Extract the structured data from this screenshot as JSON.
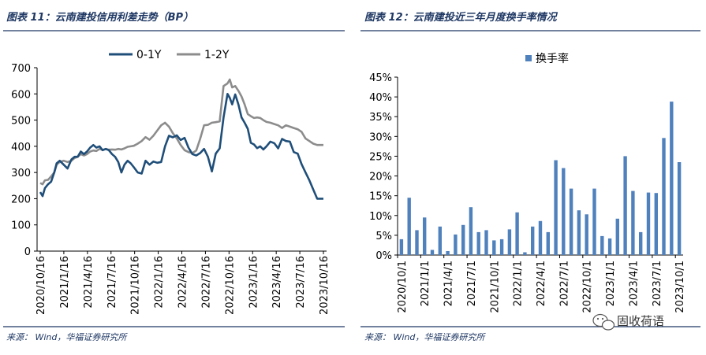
{
  "figure_left": {
    "title": "图表 11：云南建投信用利差走势（BP）",
    "source": "来源：  Wind，华福证券研究所"
  },
  "figure_right": {
    "title": "图表 12：云南建投近三年月度换手率情况",
    "source": "来源：  Wind，华福证券研究所"
  },
  "watermark": {
    "text": "固收荷语"
  },
  "colors": {
    "series_0_1y": "#1f4e79",
    "series_1_2y": "#8c8c8c",
    "bars": "#4f81bd",
    "title": "#1f3864",
    "rule": "#1f3864"
  },
  "chart_data": [
    {
      "type": "line",
      "title": "云南建投信用利差走势（BP）",
      "legend_position": "top-center",
      "ylim": [
        0,
        700
      ],
      "yticks": [
        "0",
        "100",
        "200",
        "300",
        "400",
        "500",
        "600",
        "700"
      ],
      "xticks": [
        "2020/10/16",
        "2021/1/16",
        "2021/4/16",
        "2021/7/16",
        "2021/10/16",
        "2022/1/16",
        "2022/4/16",
        "2022/7/16",
        "2022/10/16",
        "2023/1/16",
        "2023/4/16",
        "2023/7/16",
        "2023/10/16"
      ],
      "x_months_from_start": [
        0,
        0.3,
        0.6,
        1,
        1.4,
        1.8,
        2.1,
        2.5,
        3,
        3.5,
        4,
        4.4,
        4.8,
        5.2,
        5.6,
        6,
        6.4,
        6.8,
        7.2,
        7.6,
        8,
        8.4,
        8.8,
        9.2,
        9.6,
        10,
        10.4,
        10.8,
        11.2,
        11.6,
        12,
        12.5,
        13,
        13.5,
        14,
        14.5,
        15,
        15.5,
        16,
        16.5,
        17,
        17.5,
        18,
        18.5,
        19,
        19.5,
        20,
        20.5,
        21,
        21.5,
        22,
        22.5,
        23,
        23.5,
        24,
        24.3,
        24.6,
        25,
        25.4,
        25.8,
        26.2,
        26.6,
        27,
        27.4,
        27.8,
        28.2,
        28.6,
        29,
        29.5,
        30,
        30.5,
        31,
        31.5,
        32,
        32.5,
        33,
        33.5,
        34,
        34.5,
        35,
        35.5,
        36,
        36.3
      ],
      "series": [
        {
          "name": "0-1Y",
          "values": [
            225,
            210,
            240,
            255,
            265,
            300,
            335,
            345,
            330,
            315,
            350,
            360,
            360,
            380,
            370,
            380,
            395,
            405,
            395,
            400,
            385,
            390,
            385,
            370,
            360,
            340,
            300,
            330,
            345,
            335,
            320,
            300,
            296,
            345,
            330,
            342,
            337,
            340,
            400,
            440,
            434,
            442,
            424,
            432,
            395,
            370,
            365,
            374,
            390,
            360,
            304,
            372,
            392,
            510,
            600,
            585,
            560,
            598,
            560,
            510,
            490,
            467,
            413,
            407,
            393,
            400,
            388,
            400,
            418,
            412,
            392,
            428,
            420,
            418,
            378,
            372,
            332,
            300,
            270,
            235,
            200,
            200,
            200
          ]
        },
        {
          "name": "1-2Y",
          "values": [
            260,
            255,
            270,
            272,
            285,
            300,
            330,
            340,
            345,
            340,
            345,
            355,
            360,
            370,
            365,
            370,
            380,
            384,
            382,
            390,
            386,
            390,
            387,
            388,
            387,
            390,
            388,
            392,
            398,
            400,
            402,
            410,
            420,
            435,
            425,
            440,
            460,
            480,
            490,
            475,
            450,
            430,
            405,
            385,
            378,
            374,
            384,
            428,
            480,
            482,
            490,
            492,
            495,
            630,
            640,
            655,
            625,
            630,
            612,
            590,
            560,
            523,
            515,
            508,
            510,
            508,
            500,
            493,
            490,
            485,
            480,
            470,
            480,
            475,
            470,
            465,
            455,
            430,
            420,
            410,
            405,
            405,
            405
          ]
        }
      ]
    },
    {
      "type": "bar",
      "title": "云南建投近三年月度换手率情况",
      "legend_position": "top-center",
      "ylim": [
        0,
        45
      ],
      "yticks": [
        "0%",
        "5%",
        "10%",
        "15%",
        "20%",
        "25%",
        "30%",
        "35%",
        "40%",
        "45%"
      ],
      "xticks": [
        "2020/10/1",
        "2021/1/1",
        "2021/4/1",
        "2021/7/1",
        "2021/10/1",
        "2022/1/1",
        "2022/4/1",
        "2022/7/1",
        "2022/10/1",
        "2023/1/1",
        "2023/4/1",
        "2023/7/1",
        "2023/10/1"
      ],
      "series": [
        {
          "name": "换手率",
          "values": [
            4.0,
            14.5,
            6.3,
            9.5,
            1.3,
            7.2,
            1.0,
            5.2,
            7.6,
            12.1,
            5.8,
            6.3,
            3.7,
            4.0,
            6.5,
            10.8,
            0.7,
            7.2,
            8.6,
            5.8,
            24.0,
            22.0,
            16.8,
            11.3,
            10.3,
            16.8,
            4.8,
            4.2,
            9.2,
            25.0,
            16.2,
            5.8,
            15.8,
            15.7,
            29.6,
            38.8,
            23.5
          ]
        }
      ]
    }
  ]
}
